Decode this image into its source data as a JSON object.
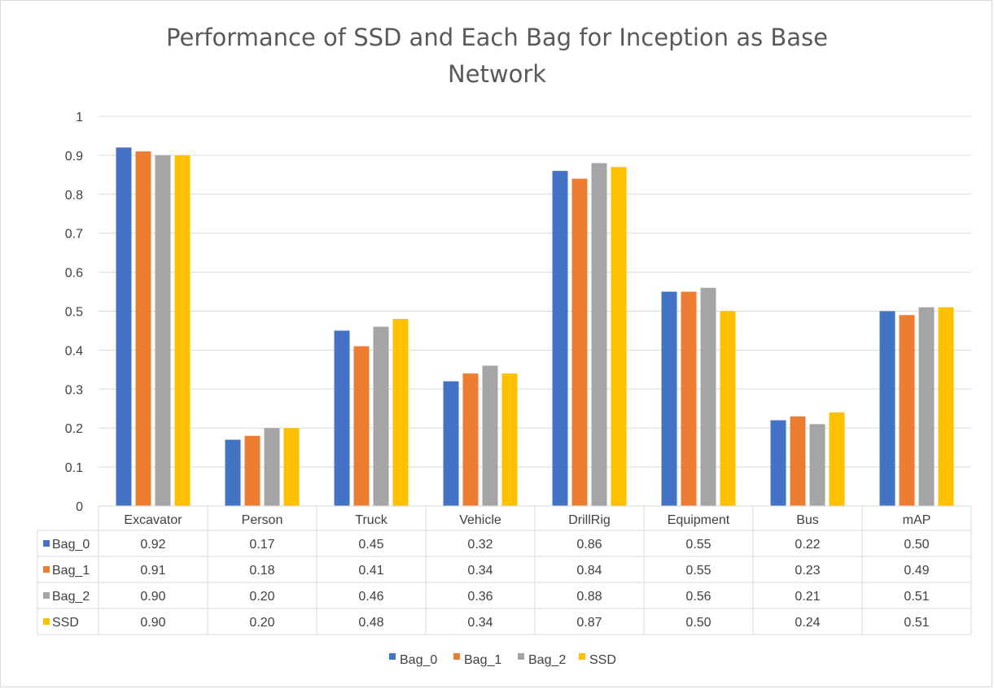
{
  "chart_data": {
    "type": "bar",
    "title": "Performance of SSD and Each Bag for Inception as Base Network",
    "title_lines": [
      "Performance of SSD and Each Bag for Inception as Base",
      "Network"
    ],
    "categories": [
      "Excavator",
      "Person",
      "Truck",
      "Vehicle",
      "DrillRig",
      "Equipment",
      "Bus",
      "mAP"
    ],
    "series": [
      {
        "name": "Bag_0",
        "color": "#4472C4",
        "values": [
          0.92,
          0.17,
          0.45,
          0.32,
          0.86,
          0.55,
          0.22,
          0.5
        ],
        "labels": [
          "0.92",
          "0.17",
          "0.45",
          "0.32",
          "0.86",
          "0.55",
          "0.22",
          "0.50"
        ]
      },
      {
        "name": "Bag_1",
        "color": "#ED7D31",
        "values": [
          0.91,
          0.18,
          0.41,
          0.34,
          0.84,
          0.55,
          0.23,
          0.49
        ],
        "labels": [
          "0.91",
          "0.18",
          "0.41",
          "0.34",
          "0.84",
          "0.55",
          "0.23",
          "0.49"
        ]
      },
      {
        "name": "Bag_2",
        "color": "#A5A5A5",
        "values": [
          0.9,
          0.2,
          0.46,
          0.36,
          0.88,
          0.56,
          0.21,
          0.51
        ],
        "labels": [
          "0.90",
          "0.20",
          "0.46",
          "0.36",
          "0.88",
          "0.56",
          "0.21",
          "0.51"
        ]
      },
      {
        "name": "SSD",
        "color": "#FFC000",
        "values": [
          0.9,
          0.2,
          0.48,
          0.34,
          0.87,
          0.5,
          0.24,
          0.51
        ],
        "labels": [
          "0.90",
          "0.20",
          "0.48",
          "0.34",
          "0.87",
          "0.50",
          "0.24",
          "0.51"
        ]
      }
    ],
    "ylim": [
      0,
      1
    ],
    "yticks": [
      "0",
      "0.1",
      "0.2",
      "0.3",
      "0.4",
      "0.5",
      "0.6",
      "0.7",
      "0.8",
      "0.9",
      "1"
    ],
    "grid": true,
    "data_table": true,
    "legend": "bottom",
    "xlabel": "",
    "ylabel": ""
  }
}
